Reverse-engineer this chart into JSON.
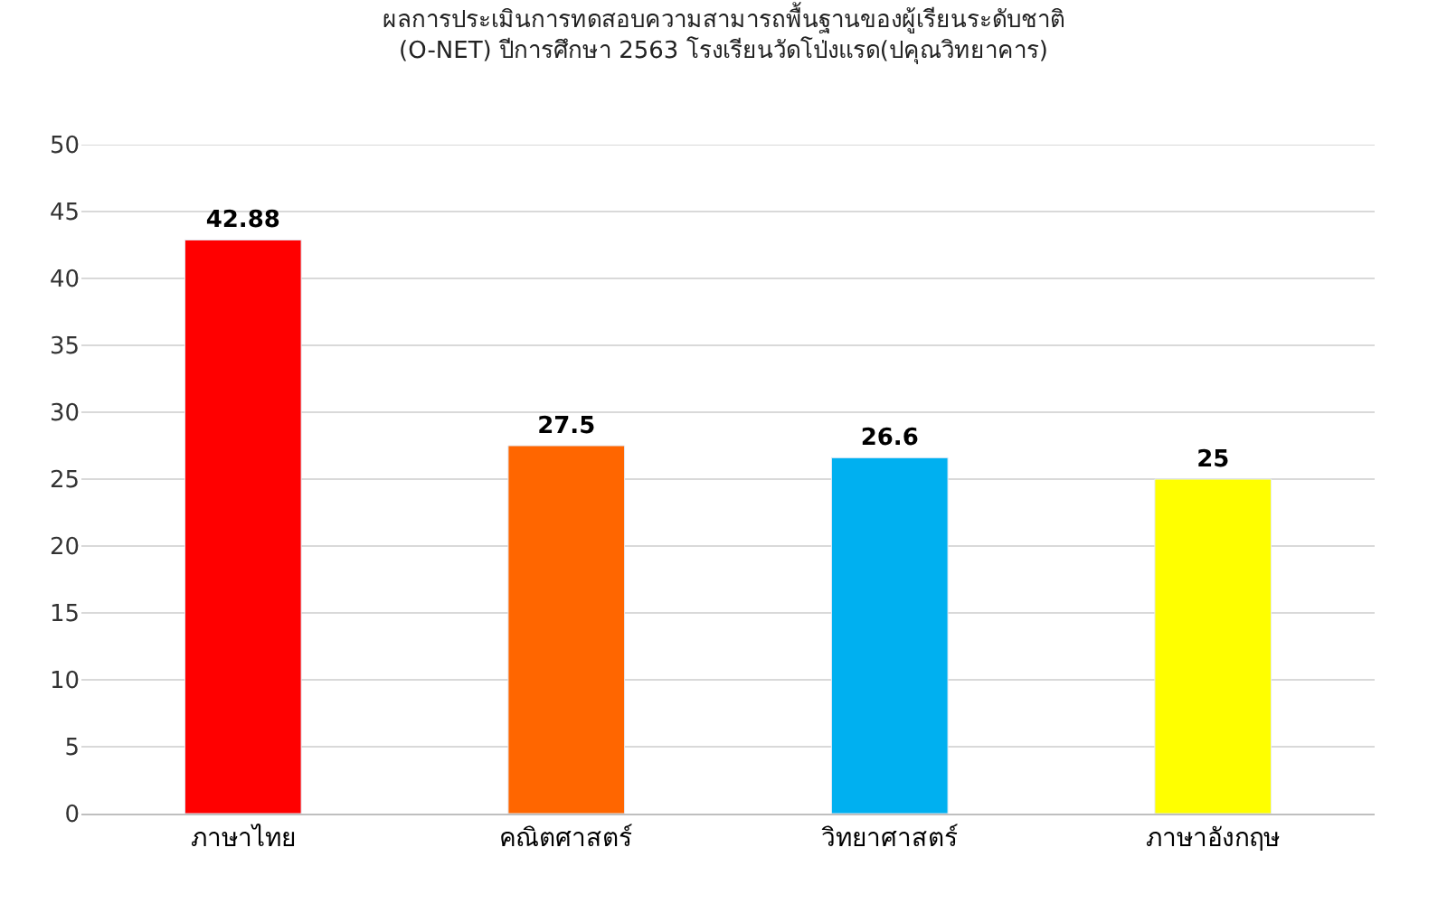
{
  "chart_data": {
    "type": "bar",
    "title": "ผลการประเมินการทดสอบความสามารถพื้นฐานของผู้เรียนระดับชาติ",
    "subtitle": "(O-NET) ปีการศึกษา 2563 โรงเรียนวัดโป่งแรด(ปคุณวิทยาคาร)",
    "categories": [
      "ภาษาไทย",
      "คณิตศาสตร์",
      "วิทยาศาสตร์",
      "ภาษาอังกฤษ"
    ],
    "values": [
      42.88,
      27.5,
      26.6,
      25
    ],
    "colors": [
      "#ff0000",
      "#ff6600",
      "#00b0f0",
      "#ffff00"
    ],
    "ylim": [
      0,
      50
    ],
    "yticks": [
      0,
      5,
      10,
      15,
      20,
      25,
      30,
      35,
      40,
      45,
      50
    ],
    "grid": "y",
    "data_labels": true
  }
}
